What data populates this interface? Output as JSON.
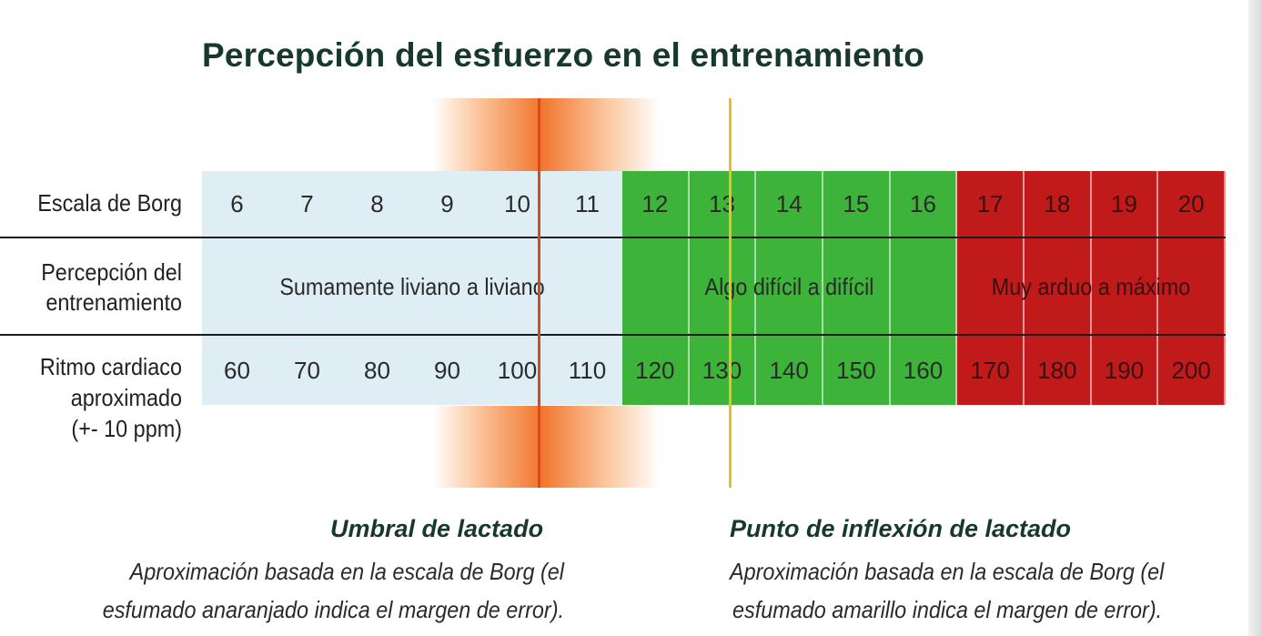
{
  "title": "Percepción del esfuerzo en el entrenamiento",
  "row_labels": {
    "borg": "Escala de Borg",
    "perception_line1": "Percepción del",
    "perception_line2": "entrenamiento",
    "heart_line1": "Ritmo cardiaco",
    "heart_line2": "aproximado",
    "heart_line3": "(+- 10 ppm)"
  },
  "borg_values": [
    "6",
    "7",
    "8",
    "9",
    "10",
    "11",
    "12",
    "13",
    "14",
    "15",
    "16",
    "17",
    "18",
    "19",
    "20"
  ],
  "heart_rates": [
    "60",
    "70",
    "80",
    "90",
    "100",
    "110",
    "120",
    "130",
    "140",
    "150",
    "160",
    "170",
    "180",
    "190",
    "200"
  ],
  "zones": [
    {
      "label": "Sumamente liviano a liviano",
      "from": 6,
      "to": 11,
      "color": "#dfedf5"
    },
    {
      "label": "Algo difícil a difícil",
      "from": 12,
      "to": 16,
      "color": "#3db33a"
    },
    {
      "label": "Muy arduo a máximo",
      "from": 17,
      "to": 20,
      "color": "#c01a1a"
    }
  ],
  "markers": {
    "lactate_threshold": {
      "borg": 10.3,
      "color": "#d9491c",
      "glow_color": "#f28a3c"
    },
    "lactate_inflection": {
      "borg": 13.1,
      "color": "#e6c21a"
    }
  },
  "captions": {
    "left_head": "Umbral de lactado",
    "left_body1": "Aproximación basada en la escala de Borg (el",
    "left_body2": "esfumado anaranjado indica el margen de error).",
    "right_head": "Punto de inflexión de lactado",
    "right_body1": "Aproximación basada en la escala de Borg (el",
    "right_body2": "esfumado amarillo indica el margen de error)."
  }
}
